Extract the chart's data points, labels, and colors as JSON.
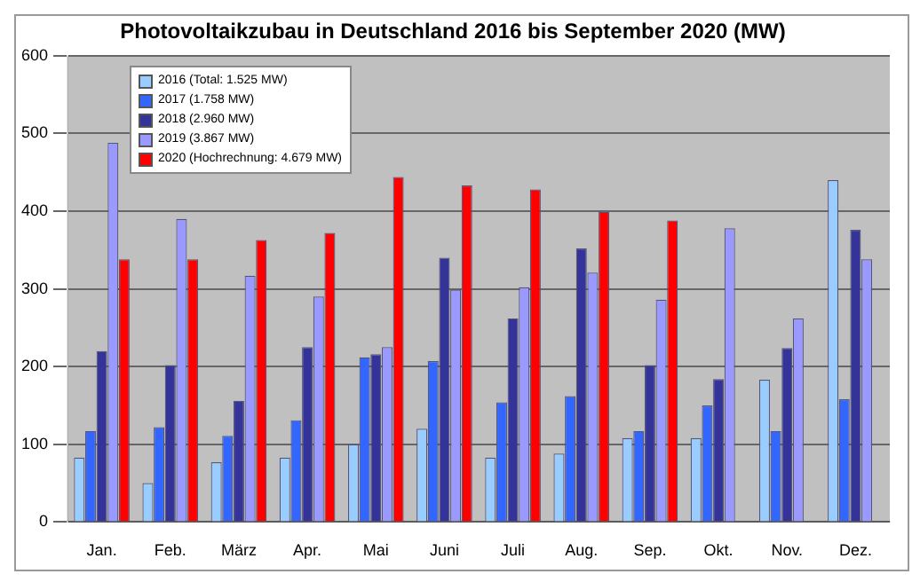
{
  "chart_data": {
    "type": "bar",
    "title": "Photovoltaikzubau in Deutschland 2016 bis September 2020 (MW)",
    "categories": [
      "Jan.",
      "Feb.",
      "März",
      "Apr.",
      "Mai",
      "Juni",
      "Juli",
      "Aug.",
      "Sep.",
      "Okt.",
      "Nov.",
      "Dez."
    ],
    "series": [
      {
        "name": "2016 (Total: 1.525 MW)",
        "color": "#99ccff",
        "values": [
          83,
          50,
          77,
          83,
          100,
          120,
          83,
          88,
          108,
          108,
          183,
          440
        ]
      },
      {
        "name": "2017 (1.758 MW)",
        "color": "#3366ff",
        "values": [
          117,
          122,
          111,
          131,
          212,
          207,
          154,
          162,
          117,
          150,
          117,
          158
        ]
      },
      {
        "name": "2018 (2.960 MW)",
        "color": "#333399",
        "values": [
          220,
          202,
          156,
          225,
          216,
          340,
          262,
          352,
          202,
          184,
          224,
          376
        ]
      },
      {
        "name": "2019 (3.867 MW)",
        "color": "#9999ff",
        "values": [
          488,
          390,
          317,
          290,
          225,
          299,
          302,
          321,
          286,
          378,
          262,
          338
        ]
      },
      {
        "name": "2020 (Hochrechnung: 4.679 MW)",
        "color": "#ff0000",
        "values": [
          338,
          338,
          363,
          372,
          444,
          433,
          428,
          399,
          388,
          null,
          null,
          null
        ]
      }
    ],
    "ylim": [
      0,
      600
    ],
    "yticks": [
      0,
      100,
      200,
      300,
      400,
      500,
      600
    ],
    "grid": "y",
    "legend": "top left"
  }
}
